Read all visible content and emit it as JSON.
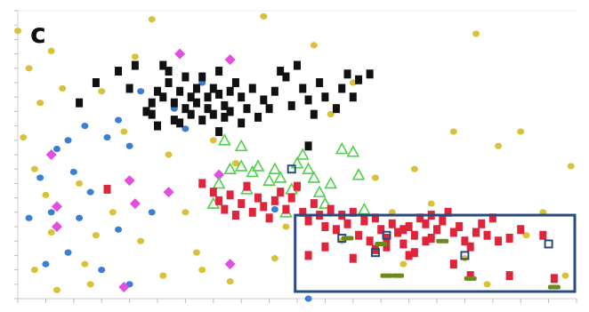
{
  "panel_label": "c",
  "chart_data": {
    "type": "scatter",
    "title": "",
    "xlabel": "",
    "ylabel": "",
    "xlim": [
      0,
      1
    ],
    "ylim": [
      0,
      1
    ],
    "grid": false,
    "legend": "none",
    "highlight_box": {
      "x0": 0.49,
      "x1": 1.0,
      "y0": 0.0,
      "y1": 0.29,
      "color": "#2b4a7e"
    },
    "series": [
      {
        "marker": "circle",
        "color": "#d9c23a",
        "fill": true,
        "points": [
          [
            0.0,
            0.93
          ],
          [
            0.02,
            0.8
          ],
          [
            0.04,
            0.68
          ],
          [
            0.06,
            0.86
          ],
          [
            0.08,
            0.73
          ],
          [
            0.09,
            0.55
          ],
          [
            0.03,
            0.45
          ],
          [
            0.05,
            0.36
          ],
          [
            0.11,
            0.4
          ],
          [
            0.14,
            0.22
          ],
          [
            0.17,
            0.3
          ],
          [
            0.12,
            0.12
          ],
          [
            0.03,
            0.1
          ],
          [
            0.07,
            0.03
          ],
          [
            0.24,
            0.97
          ],
          [
            0.19,
            0.58
          ],
          [
            0.22,
            0.2
          ],
          [
            0.27,
            0.5
          ],
          [
            0.3,
            0.3
          ],
          [
            0.32,
            0.16
          ],
          [
            0.35,
            0.55
          ],
          [
            0.39,
            0.47
          ],
          [
            0.44,
            0.98
          ],
          [
            0.46,
            0.14
          ],
          [
            0.5,
            0.38
          ],
          [
            0.53,
            0.88
          ],
          [
            0.56,
            0.64
          ],
          [
            0.6,
            0.75
          ],
          [
            0.64,
            0.42
          ],
          [
            0.69,
            0.12
          ],
          [
            0.74,
            0.33
          ],
          [
            0.78,
            0.58
          ],
          [
            0.82,
            0.92
          ],
          [
            0.84,
            0.05
          ],
          [
            0.86,
            0.53
          ],
          [
            0.9,
            0.58
          ],
          [
            0.94,
            0.3
          ],
          [
            0.99,
            0.46
          ],
          [
            0.98,
            0.08
          ],
          [
            0.06,
            0.23
          ],
          [
            0.01,
            0.56
          ],
          [
            0.15,
            0.72
          ],
          [
            0.21,
            0.84
          ],
          [
            0.33,
            0.1
          ],
          [
            0.48,
            0.25
          ],
          [
            0.58,
            0.2
          ],
          [
            0.67,
            0.3
          ],
          [
            0.8,
            0.14
          ],
          [
            0.91,
            0.22
          ],
          [
            0.13,
            0.05
          ],
          [
            0.26,
            0.08
          ],
          [
            0.38,
            0.06
          ],
          [
            0.71,
            0.45
          ]
        ]
      },
      {
        "marker": "circle",
        "color": "#3a7fd6",
        "fill": true,
        "points": [
          [
            0.04,
            0.42
          ],
          [
            0.07,
            0.52
          ],
          [
            0.09,
            0.55
          ],
          [
            0.1,
            0.44
          ],
          [
            0.13,
            0.37
          ],
          [
            0.16,
            0.56
          ],
          [
            0.12,
            0.6
          ],
          [
            0.18,
            0.62
          ],
          [
            0.2,
            0.53
          ],
          [
            0.22,
            0.72
          ],
          [
            0.26,
            0.7
          ],
          [
            0.06,
            0.3
          ],
          [
            0.09,
            0.16
          ],
          [
            0.18,
            0.24
          ],
          [
            0.15,
            0.1
          ],
          [
            0.02,
            0.28
          ],
          [
            0.24,
            0.3
          ],
          [
            0.28,
            0.66
          ],
          [
            0.33,
            0.75
          ],
          [
            0.52,
            0.0
          ],
          [
            0.46,
            0.31
          ],
          [
            0.11,
            0.28
          ],
          [
            0.2,
            0.05
          ],
          [
            0.05,
            0.12
          ],
          [
            0.3,
            0.59
          ]
        ]
      },
      {
        "marker": "diamond",
        "color": "#e24ee0",
        "fill": true,
        "points": [
          [
            0.06,
            0.5
          ],
          [
            0.07,
            0.32
          ],
          [
            0.07,
            0.25
          ],
          [
            0.21,
            0.33
          ],
          [
            0.2,
            0.41
          ],
          [
            0.29,
            0.85
          ],
          [
            0.38,
            0.83
          ],
          [
            0.38,
            0.12
          ],
          [
            0.19,
            0.04
          ],
          [
            0.27,
            0.37
          ],
          [
            0.36,
            0.43
          ]
        ]
      },
      {
        "marker": "square",
        "color": "#111111",
        "fill": true,
        "points": [
          [
            0.11,
            0.68
          ],
          [
            0.14,
            0.75
          ],
          [
            0.18,
            0.79
          ],
          [
            0.2,
            0.73
          ],
          [
            0.21,
            0.81
          ],
          [
            0.23,
            0.65
          ],
          [
            0.24,
            0.68
          ],
          [
            0.24,
            0.64
          ],
          [
            0.25,
            0.72
          ],
          [
            0.26,
            0.81
          ],
          [
            0.26,
            0.7
          ],
          [
            0.27,
            0.75
          ],
          [
            0.27,
            0.79
          ],
          [
            0.28,
            0.68
          ],
          [
            0.28,
            0.62
          ],
          [
            0.29,
            0.72
          ],
          [
            0.3,
            0.66
          ],
          [
            0.3,
            0.77
          ],
          [
            0.31,
            0.7
          ],
          [
            0.31,
            0.64
          ],
          [
            0.32,
            0.73
          ],
          [
            0.32,
            0.68
          ],
          [
            0.33,
            0.62
          ],
          [
            0.33,
            0.77
          ],
          [
            0.34,
            0.7
          ],
          [
            0.34,
            0.66
          ],
          [
            0.35,
            0.73
          ],
          [
            0.35,
            0.64
          ],
          [
            0.36,
            0.79
          ],
          [
            0.36,
            0.71
          ],
          [
            0.37,
            0.67
          ],
          [
            0.37,
            0.63
          ],
          [
            0.38,
            0.72
          ],
          [
            0.38,
            0.65
          ],
          [
            0.39,
            0.75
          ],
          [
            0.4,
            0.7
          ],
          [
            0.41,
            0.66
          ],
          [
            0.42,
            0.73
          ],
          [
            0.43,
            0.63
          ],
          [
            0.44,
            0.69
          ],
          [
            0.45,
            0.66
          ],
          [
            0.46,
            0.72
          ],
          [
            0.47,
            0.79
          ],
          [
            0.48,
            0.77
          ],
          [
            0.49,
            0.67
          ],
          [
            0.5,
            0.81
          ],
          [
            0.51,
            0.73
          ],
          [
            0.52,
            0.53
          ],
          [
            0.52,
            0.69
          ],
          [
            0.53,
            0.64
          ],
          [
            0.54,
            0.75
          ],
          [
            0.55,
            0.7
          ],
          [
            0.57,
            0.66
          ],
          [
            0.58,
            0.73
          ],
          [
            0.59,
            0.78
          ],
          [
            0.6,
            0.7
          ],
          [
            0.61,
            0.76
          ],
          [
            0.63,
            0.78
          ],
          [
            0.25,
            0.6
          ],
          [
            0.29,
            0.61
          ],
          [
            0.36,
            0.58
          ],
          [
            0.4,
            0.61
          ]
        ]
      },
      {
        "marker": "triangle",
        "color": "#4fd14a",
        "fill": false,
        "points": [
          [
            0.37,
            0.55
          ],
          [
            0.4,
            0.53
          ],
          [
            0.38,
            0.45
          ],
          [
            0.4,
            0.46
          ],
          [
            0.42,
            0.44
          ],
          [
            0.43,
            0.46
          ],
          [
            0.45,
            0.41
          ],
          [
            0.46,
            0.45
          ],
          [
            0.47,
            0.42
          ],
          [
            0.49,
            0.38
          ],
          [
            0.5,
            0.47
          ],
          [
            0.51,
            0.5
          ],
          [
            0.52,
            0.45
          ],
          [
            0.53,
            0.42
          ],
          [
            0.54,
            0.37
          ],
          [
            0.55,
            0.33
          ],
          [
            0.56,
            0.4
          ],
          [
            0.35,
            0.33
          ],
          [
            0.36,
            0.4
          ],
          [
            0.41,
            0.38
          ],
          [
            0.58,
            0.52
          ],
          [
            0.6,
            0.51
          ],
          [
            0.61,
            0.43
          ],
          [
            0.62,
            0.31
          ],
          [
            0.48,
            0.3
          ]
        ]
      },
      {
        "marker": "square",
        "color": "#e0243a",
        "fill": true,
        "points": [
          [
            0.16,
            0.38
          ],
          [
            0.33,
            0.4
          ],
          [
            0.35,
            0.37
          ],
          [
            0.36,
            0.34
          ],
          [
            0.37,
            0.31
          ],
          [
            0.38,
            0.36
          ],
          [
            0.39,
            0.29
          ],
          [
            0.4,
            0.33
          ],
          [
            0.41,
            0.39
          ],
          [
            0.42,
            0.3
          ],
          [
            0.43,
            0.35
          ],
          [
            0.44,
            0.32
          ],
          [
            0.45,
            0.28
          ],
          [
            0.46,
            0.34
          ],
          [
            0.47,
            0.37
          ],
          [
            0.48,
            0.31
          ],
          [
            0.49,
            0.35
          ],
          [
            0.5,
            0.39
          ],
          [
            0.51,
            0.3
          ],
          [
            0.52,
            0.27
          ],
          [
            0.53,
            0.33
          ],
          [
            0.54,
            0.29
          ],
          [
            0.55,
            0.25
          ],
          [
            0.56,
            0.31
          ],
          [
            0.57,
            0.24
          ],
          [
            0.58,
            0.29
          ],
          [
            0.59,
            0.26
          ],
          [
            0.6,
            0.3
          ],
          [
            0.61,
            0.22
          ],
          [
            0.62,
            0.27
          ],
          [
            0.63,
            0.2
          ],
          [
            0.64,
            0.28
          ],
          [
            0.65,
            0.24
          ],
          [
            0.66,
            0.21
          ],
          [
            0.67,
            0.26
          ],
          [
            0.68,
            0.23
          ],
          [
            0.69,
            0.19
          ],
          [
            0.7,
            0.25
          ],
          [
            0.71,
            0.22
          ],
          [
            0.72,
            0.28
          ],
          [
            0.73,
            0.26
          ],
          [
            0.74,
            0.21
          ],
          [
            0.75,
            0.24
          ],
          [
            0.76,
            0.27
          ],
          [
            0.77,
            0.3
          ],
          [
            0.78,
            0.23
          ],
          [
            0.79,
            0.25
          ],
          [
            0.8,
            0.2
          ],
          [
            0.81,
            0.18
          ],
          [
            0.82,
            0.23
          ],
          [
            0.83,
            0.26
          ],
          [
            0.84,
            0.22
          ],
          [
            0.85,
            0.28
          ],
          [
            0.86,
            0.2
          ],
          [
            0.88,
            0.21
          ],
          [
            0.9,
            0.24
          ],
          [
            0.94,
            0.22
          ],
          [
            0.52,
            0.15
          ],
          [
            0.55,
            0.18
          ],
          [
            0.6,
            0.14
          ],
          [
            0.64,
            0.17
          ],
          [
            0.7,
            0.15
          ],
          [
            0.73,
            0.2
          ],
          [
            0.78,
            0.12
          ],
          [
            0.81,
            0.08
          ],
          [
            0.88,
            0.08
          ],
          [
            0.96,
            0.07
          ],
          [
            0.69,
            0.24
          ],
          [
            0.71,
            0.16
          ],
          [
            0.74,
            0.29
          ],
          [
            0.66,
            0.18
          ]
        ]
      },
      {
        "marker": "square",
        "color": "#2b4a7e",
        "fill": false,
        "points": [
          [
            0.58,
            0.21
          ],
          [
            0.64,
            0.16
          ],
          [
            0.66,
            0.22
          ],
          [
            0.8,
            0.15
          ],
          [
            0.95,
            0.19
          ],
          [
            0.49,
            0.45
          ]
        ]
      },
      {
        "marker": "dash",
        "color": "#6b8a1c",
        "fill": true,
        "points": [
          [
            0.59,
            0.21
          ],
          [
            0.66,
            0.08
          ],
          [
            0.68,
            0.08
          ],
          [
            0.81,
            0.07
          ],
          [
            0.96,
            0.04
          ],
          [
            0.65,
            0.19
          ],
          [
            0.76,
            0.2
          ]
        ]
      }
    ]
  }
}
